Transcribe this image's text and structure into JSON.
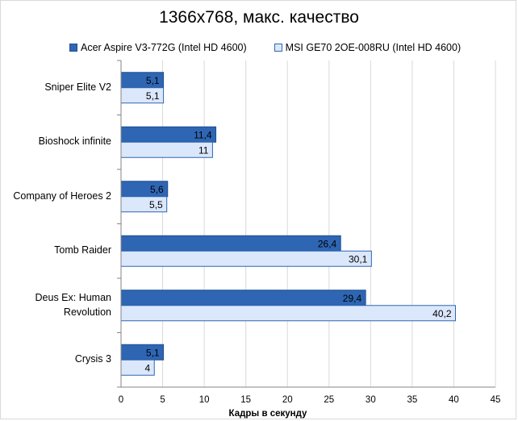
{
  "chart_data": {
    "type": "bar",
    "orientation": "horizontal",
    "title": "1366x768, макс. качество",
    "xlabel": "Кадры  в секунду",
    "ylabel": "",
    "xlim": [
      0,
      45
    ],
    "xticks": [
      0,
      5,
      10,
      15,
      20,
      25,
      30,
      35,
      40,
      45
    ],
    "grid": true,
    "legend_position": "top",
    "categories": [
      [
        "Sniper Elite V2"
      ],
      [
        "Bioshock infinite"
      ],
      [
        "Company of Heroes 2"
      ],
      [
        "Tomb Raider"
      ],
      [
        "Deus Ex: Human",
        "Revolution"
      ],
      [
        "Crysis 3"
      ]
    ],
    "series": [
      {
        "name": "Acer Aspire V3-772G (Intel HD 4600)",
        "color": "#2e66b4",
        "values": [
          5.1,
          11.4,
          5.6,
          26.4,
          29.4,
          5.1
        ],
        "labels": [
          "5,1",
          "11,4",
          "5,6",
          "26,4",
          "29,4",
          "5,1"
        ]
      },
      {
        "name": "MSI GE70 2OE-008RU (Intel HD 4600)",
        "color": "#dbe7fb",
        "values": [
          5.1,
          11,
          5.5,
          30.1,
          40.2,
          4
        ],
        "labels": [
          "5,1",
          "11",
          "5,5",
          "30,1",
          "40,2",
          "4"
        ]
      }
    ]
  }
}
